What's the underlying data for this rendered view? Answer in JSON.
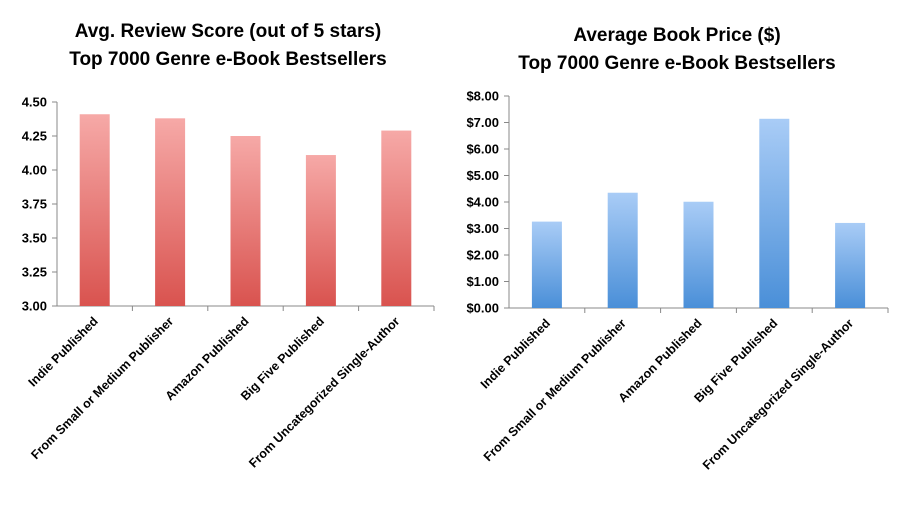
{
  "chart_data": [
    {
      "type": "bar",
      "title": "Avg. Review Score (out of 5 stars)",
      "subtitle": "Top 7000 Genre e-Book Bestsellers",
      "categories": [
        "Indie Published",
        "From Small or Medium Publisher",
        "Amazon Published",
        "Big Five Published",
        "From Uncategorized Single-Author"
      ],
      "values": [
        4.41,
        4.38,
        4.25,
        4.11,
        4.29
      ],
      "ylim": [
        3.0,
        4.5
      ],
      "yticks": [
        3.0,
        3.25,
        3.5,
        3.75,
        4.0,
        4.25,
        4.5
      ],
      "ytick_labels": [
        "3.00",
        "3.25",
        "3.50",
        "3.75",
        "4.00",
        "4.25",
        "4.50"
      ],
      "grid": false,
      "colors": {
        "bar_top": "#f6a9a7",
        "bar_bottom": "#d9534f"
      }
    },
    {
      "type": "bar",
      "title": "Average Book Price ($)",
      "subtitle": "Top 7000 Genre e-Book Bestsellers",
      "categories": [
        "Indie Published",
        "From Small or Medium Publisher",
        "Amazon Published",
        "Big Five Published",
        "From Uncategorized Single-Author"
      ],
      "values": [
        3.26,
        4.35,
        4.01,
        7.14,
        3.21
      ],
      "ylim": [
        0,
        8
      ],
      "yticks": [
        0,
        1,
        2,
        3,
        4,
        5,
        6,
        7,
        8
      ],
      "ytick_labels": [
        "$0.00",
        "$1.00",
        "$2.00",
        "$3.00",
        "$4.00",
        "$5.00",
        "$6.00",
        "$7.00",
        "$8.00"
      ],
      "grid": false,
      "colors": {
        "bar_top": "#a9ccf6",
        "bar_bottom": "#4a8fd8"
      }
    }
  ]
}
